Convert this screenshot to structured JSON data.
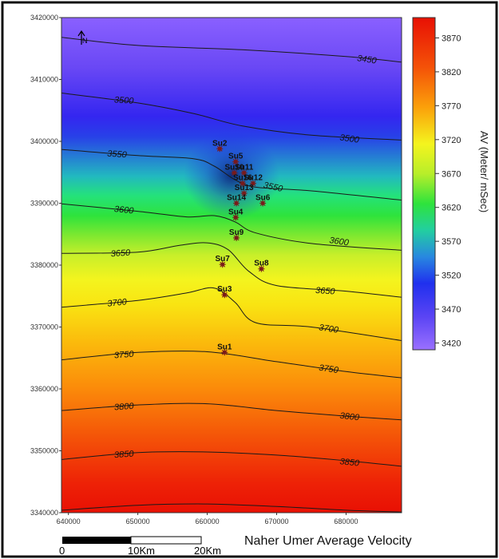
{
  "chart_data": {
    "type": "heatmap",
    "title": "Naher Umer Average Velocity",
    "x_ticks": [
      "640000",
      "650000",
      "660000",
      "670000",
      "680000"
    ],
    "y_ticks": [
      "3340000",
      "3350000",
      "3360000",
      "3370000",
      "3380000",
      "3390000",
      "3400000",
      "3410000",
      "3420000"
    ],
    "xlim": [
      639000,
      688000
    ],
    "ylim": [
      3340000,
      3420000
    ],
    "colorbar": {
      "label": "AV (Meter/ mSec)",
      "min": 3410,
      "max": 3900,
      "ticks": [
        {
          "value": 3870,
          "label": "3870"
        },
        {
          "value": 3820,
          "label": "3820"
        },
        {
          "value": 3770,
          "label": "3770"
        },
        {
          "value": 3720,
          "label": "3720"
        },
        {
          "value": 3670,
          "label": "3670"
        },
        {
          "value": 3620,
          "label": "3620"
        },
        {
          "value": 3570,
          "label": "3570"
        },
        {
          "value": 3520,
          "label": "3520"
        },
        {
          "value": 3470,
          "label": "3470"
        },
        {
          "value": 3420,
          "label": "3420"
        }
      ]
    },
    "contours": [
      {
        "value": 3450,
        "label": "3450",
        "points": [
          [
            639000,
            3416800
          ],
          [
            650000,
            3415500
          ],
          [
            665000,
            3414800
          ],
          [
            680000,
            3413700
          ],
          [
            688000,
            3412800
          ]
        ]
      },
      {
        "value": 3500,
        "label": "3500",
        "points": [
          [
            639000,
            3407800
          ],
          [
            650000,
            3406200
          ],
          [
            658000,
            3404500
          ],
          [
            665000,
            3402500
          ],
          [
            675000,
            3401000
          ],
          [
            688000,
            3400200
          ]
        ]
      },
      {
        "value": 3550,
        "label": "3550",
        "points": [
          [
            639000,
            3398700
          ],
          [
            650000,
            3397700
          ],
          [
            658000,
            3397200
          ],
          [
            661000,
            3396000
          ],
          [
            664000,
            3393800
          ],
          [
            667000,
            3392600
          ],
          [
            675000,
            3392000
          ],
          [
            688000,
            3390500
          ]
        ]
      },
      {
        "value": 3600,
        "label": "3600",
        "points": [
          [
            639000,
            3389900
          ],
          [
            650000,
            3388700
          ],
          [
            657000,
            3387800
          ],
          [
            661000,
            3388000
          ],
          [
            664000,
            3387000
          ],
          [
            667000,
            3385200
          ],
          [
            675000,
            3383500
          ],
          [
            688000,
            3382400
          ]
        ]
      },
      {
        "value": 3650,
        "label": "3650",
        "points": [
          [
            639000,
            3381900
          ],
          [
            650000,
            3382100
          ],
          [
            656000,
            3383200
          ],
          [
            660000,
            3383600
          ],
          [
            663000,
            3382500
          ],
          [
            666000,
            3379000
          ],
          [
            670000,
            3376700
          ],
          [
            680000,
            3375800
          ],
          [
            688000,
            3374800
          ]
        ]
      },
      {
        "value": 3700,
        "label": "3700",
        "points": [
          [
            639000,
            3373200
          ],
          [
            650000,
            3374300
          ],
          [
            657000,
            3375500
          ],
          [
            661000,
            3376300
          ],
          [
            664000,
            3374000
          ],
          [
            667000,
            3370700
          ],
          [
            675000,
            3370000
          ],
          [
            688000,
            3367800
          ]
        ]
      },
      {
        "value": 3750,
        "label": "3750",
        "points": [
          [
            639000,
            3364700
          ],
          [
            650000,
            3365900
          ],
          [
            660000,
            3366000
          ],
          [
            670000,
            3364400
          ],
          [
            680000,
            3362800
          ],
          [
            688000,
            3361800
          ]
        ]
      },
      {
        "value": 3800,
        "label": "3800",
        "points": [
          [
            639000,
            3356500
          ],
          [
            650000,
            3357400
          ],
          [
            660000,
            3357600
          ],
          [
            670000,
            3356500
          ],
          [
            680000,
            3355600
          ],
          [
            688000,
            3355000
          ]
        ]
      },
      {
        "value": 3850,
        "label": "3850",
        "points": [
          [
            639000,
            3348600
          ],
          [
            650000,
            3349700
          ],
          [
            660000,
            3349800
          ],
          [
            670000,
            3349300
          ],
          [
            680000,
            3348400
          ],
          [
            688000,
            3347500
          ]
        ]
      },
      {
        "value": 3900,
        "label": "",
        "points": [
          [
            639000,
            3340400
          ],
          [
            650000,
            3341200
          ],
          [
            660000,
            3341400
          ],
          [
            670000,
            3341000
          ],
          [
            680000,
            3340400
          ],
          [
            688000,
            3340100
          ]
        ]
      }
    ],
    "contour_labels": [
      {
        "text": "3450",
        "x": 683000,
        "y": 3413300,
        "angle": 8
      },
      {
        "text": "3500",
        "x": 648000,
        "y": 3406700,
        "angle": 4
      },
      {
        "text": "3500",
        "x": 680500,
        "y": 3400500,
        "angle": 8
      },
      {
        "text": "3550",
        "x": 647000,
        "y": 3398000,
        "angle": 4
      },
      {
        "text": "3550",
        "x": 669500,
        "y": 3392700,
        "angle": 12
      },
      {
        "text": "3600",
        "x": 648000,
        "y": 3389000,
        "angle": 6
      },
      {
        "text": "3600",
        "x": 679000,
        "y": 3383900,
        "angle": 8
      },
      {
        "text": "3650",
        "x": 647500,
        "y": 3382000,
        "angle": -4
      },
      {
        "text": "3650",
        "x": 677000,
        "y": 3375900,
        "angle": 4
      },
      {
        "text": "3700",
        "x": 647000,
        "y": 3374000,
        "angle": -6
      },
      {
        "text": "3700",
        "x": 677500,
        "y": 3369800,
        "angle": 8
      },
      {
        "text": "3750",
        "x": 648000,
        "y": 3365600,
        "angle": -4
      },
      {
        "text": "3750",
        "x": 677500,
        "y": 3363300,
        "angle": 8
      },
      {
        "text": "3800",
        "x": 648000,
        "y": 3357200,
        "angle": -4
      },
      {
        "text": "3800",
        "x": 680500,
        "y": 3355600,
        "angle": 6
      },
      {
        "text": "3850",
        "x": 648000,
        "y": 3349500,
        "angle": -4
      },
      {
        "text": "3850",
        "x": 680500,
        "y": 3348200,
        "angle": 6
      }
    ],
    "wells": [
      {
        "name": "Su2",
        "x": 661800,
        "y": 3398800
      },
      {
        "name": "Su5",
        "x": 664100,
        "y": 3396700
      },
      {
        "name": "Su10",
        "x": 663900,
        "y": 3394900
      },
      {
        "name": "Su11",
        "x": 665300,
        "y": 3394900
      },
      {
        "name": "Su16",
        "x": 665100,
        "y": 3393200
      },
      {
        "name": "Su12",
        "x": 666600,
        "y": 3393200
      },
      {
        "name": "Su13",
        "x": 665300,
        "y": 3391600
      },
      {
        "name": "Su6",
        "x": 668000,
        "y": 3390000
      },
      {
        "name": "Su14",
        "x": 664200,
        "y": 3390000
      },
      {
        "name": "Su4",
        "x": 664100,
        "y": 3387700
      },
      {
        "name": "Su9",
        "x": 664200,
        "y": 3384400
      },
      {
        "name": "Su7",
        "x": 662200,
        "y": 3380100
      },
      {
        "name": "Su8",
        "x": 667800,
        "y": 3379400
      },
      {
        "name": "Su3",
        "x": 662500,
        "y": 3375200
      },
      {
        "name": "Su1",
        "x": 662500,
        "y": 3365900
      }
    ],
    "north_arrow": "N",
    "scale_bar": {
      "labels": [
        "0",
        "10Km",
        "20Km"
      ]
    }
  }
}
